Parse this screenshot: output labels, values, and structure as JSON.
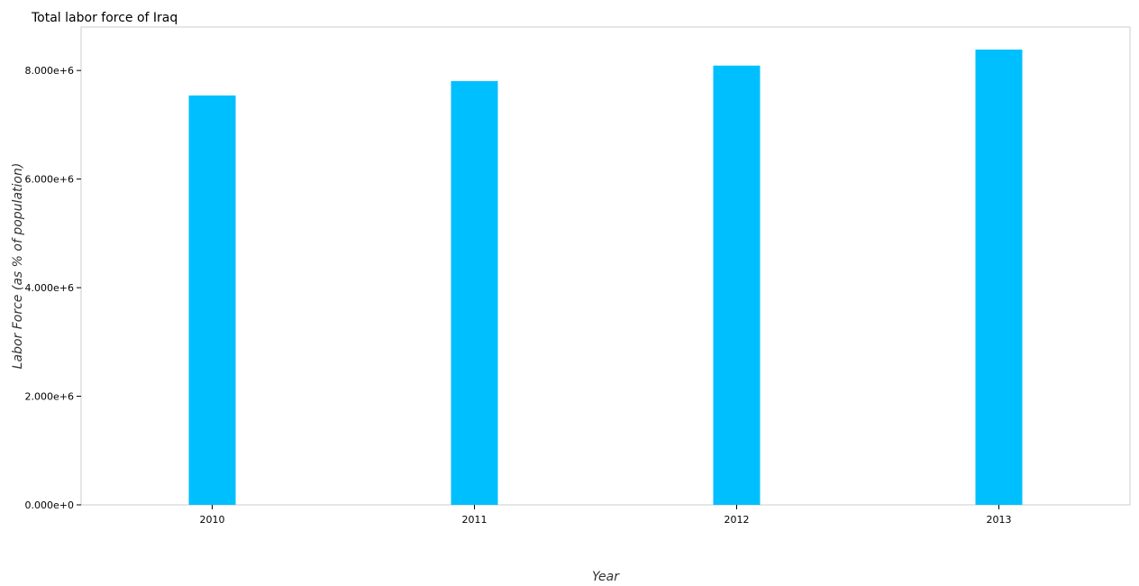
{
  "chart_data": {
    "type": "bar",
    "title": "Total labor force of Iraq",
    "xlabel": "Year",
    "ylabel": "Labor Force (as % of population)",
    "categories": [
      "2010",
      "2011",
      "2012",
      "2013"
    ],
    "values": [
      7540000,
      7805000,
      8090000,
      8385000
    ],
    "ylim": [
      0,
      8800000
    ],
    "yticks": [
      0,
      2000000,
      4000000,
      6000000,
      8000000
    ],
    "ytick_labels": [
      "0.000e+0",
      "2.000e+6",
      "4.000e+6",
      "6.000e+6",
      "8.000e+6"
    ],
    "bar_color": "#00bfff",
    "grid": false,
    "legend": "none"
  }
}
